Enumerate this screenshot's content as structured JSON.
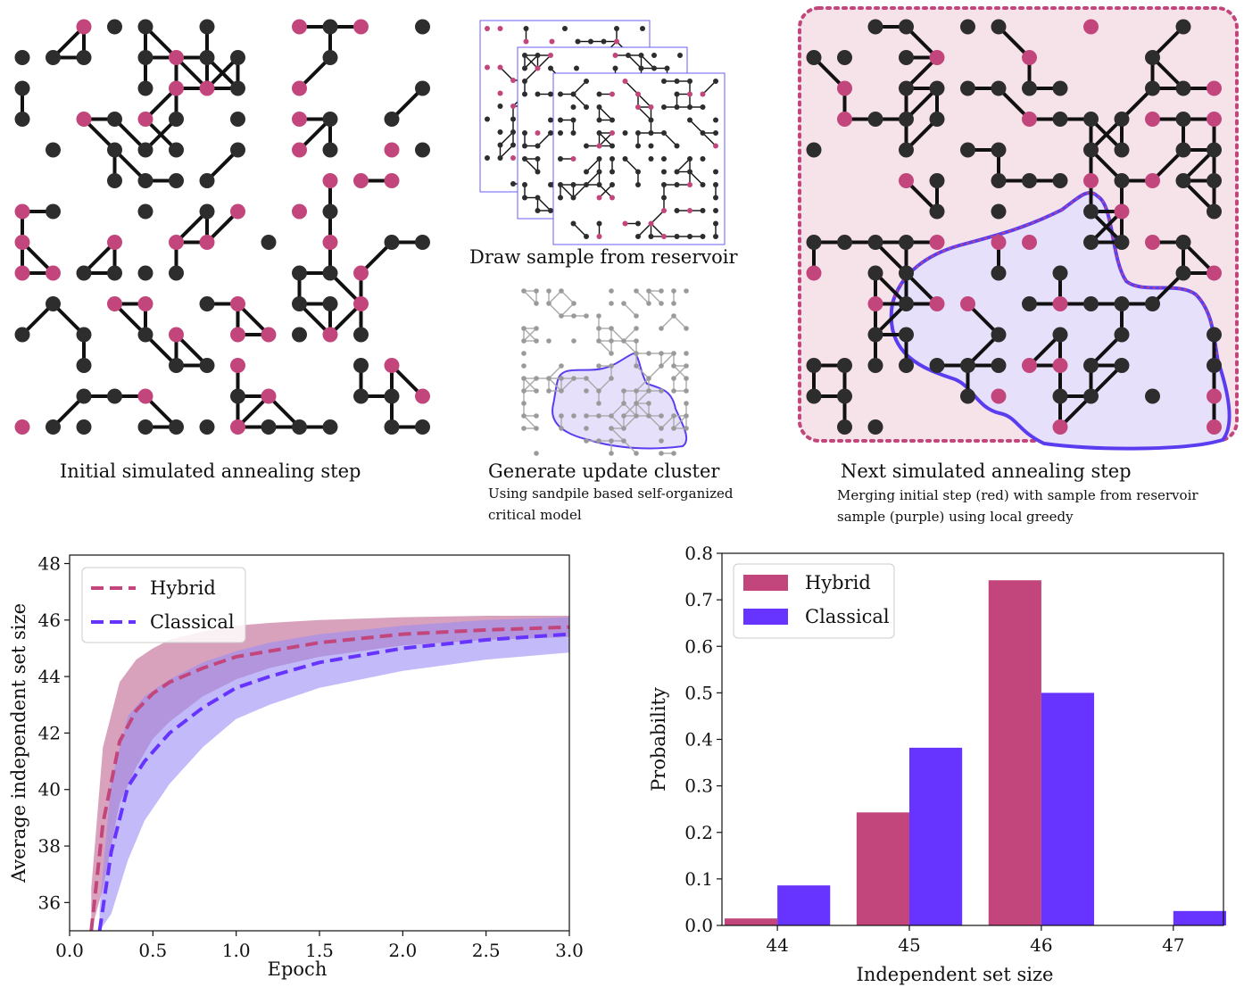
{
  "colors": {
    "node_dark": "#2d2d2d",
    "node_pink": "#c2467c",
    "edge": "#111111",
    "hybrid": "#c2467c",
    "classical": "#6633ff",
    "hybrid_band": "#c97aa0",
    "classical_band": "#9a8cf5",
    "merge_bg": "#f6e3ea",
    "cluster_bg": "#e6e0fb"
  },
  "captions": {
    "panel1": "Initial simulated annealing step",
    "panel2_top": "Draw sample from reservoir",
    "panel2_bottom_title": "Generate update cluster",
    "panel2_bottom_sub": "Using sandpile based self-organized critical model",
    "panel3_title": "Next simulated annealing step",
    "panel3_sub": "Merging initial step (red) with sample from reservoir sample (purple) using local greedy"
  },
  "chart_data": [
    {
      "type": "line",
      "xlabel": "Epoch",
      "ylabel": "Average independent set size",
      "xlim": [
        0,
        3.0
      ],
      "ylim": [
        35,
        48.3
      ],
      "xticks": [
        0.0,
        0.5,
        1.0,
        1.5,
        2.0,
        2.5,
        3.0
      ],
      "xtick_labels": [
        "0.0",
        "0.5",
        "1.0",
        "1.5",
        "2.0",
        "2.5",
        "3.0"
      ],
      "yticks": [
        36,
        38,
        40,
        42,
        44,
        46,
        48
      ],
      "ytick_labels": [
        "36",
        "38",
        "40",
        "42",
        "44",
        "46",
        "48"
      ],
      "legend": "top-left",
      "grid": false,
      "series": [
        {
          "name": "Hybrid",
          "style": "dashed",
          "x": [
            0.13,
            0.2,
            0.3,
            0.4,
            0.5,
            0.6,
            0.8,
            1.0,
            1.2,
            1.5,
            2.0,
            2.5,
            3.0
          ],
          "mean": [
            35.0,
            38.8,
            41.7,
            42.8,
            43.4,
            43.8,
            44.3,
            44.7,
            44.9,
            45.2,
            45.5,
            45.65,
            45.75
          ],
          "lower": [
            35.0,
            36.5,
            39.5,
            40.8,
            41.8,
            42.4,
            43.3,
            43.9,
            44.3,
            44.7,
            45.1,
            45.3,
            45.4
          ],
          "upper": [
            36.5,
            41.5,
            43.8,
            44.6,
            45.0,
            45.3,
            45.6,
            45.8,
            45.9,
            46.0,
            46.1,
            46.15,
            46.15
          ]
        },
        {
          "name": "Classical",
          "style": "dashed",
          "x": [
            0.18,
            0.25,
            0.35,
            0.45,
            0.6,
            0.8,
            1.0,
            1.2,
            1.5,
            2.0,
            2.5,
            3.0
          ],
          "mean": [
            35.0,
            37.8,
            40.1,
            41.0,
            42.0,
            42.9,
            43.6,
            44.0,
            44.5,
            45.0,
            45.3,
            45.5
          ],
          "lower": [
            35.0,
            35.6,
            37.5,
            38.9,
            40.2,
            41.5,
            42.5,
            43.0,
            43.6,
            44.2,
            44.6,
            44.85
          ],
          "upper": [
            35.8,
            40.3,
            42.6,
            43.3,
            43.9,
            44.5,
            44.9,
            45.2,
            45.5,
            45.8,
            46.0,
            46.1
          ]
        }
      ]
    },
    {
      "type": "bar",
      "xlabel": "Independent set size",
      "ylabel": "Probability",
      "categories": [
        "44",
        "45",
        "46",
        "47"
      ],
      "ylim": [
        0,
        0.8
      ],
      "yticks": [
        0.0,
        0.1,
        0.2,
        0.3,
        0.4,
        0.5,
        0.6,
        0.7,
        0.8
      ],
      "ytick_labels": [
        "0.0",
        "0.1",
        "0.2",
        "0.3",
        "0.4",
        "0.5",
        "0.6",
        "0.7",
        "0.8"
      ],
      "legend": "top-left",
      "series": [
        {
          "name": "Hybrid",
          "values": [
            0.015,
            0.243,
            0.742,
            0.0
          ]
        },
        {
          "name": "Classical",
          "values": [
            0.086,
            0.382,
            0.5,
            0.031
          ]
        }
      ]
    }
  ]
}
